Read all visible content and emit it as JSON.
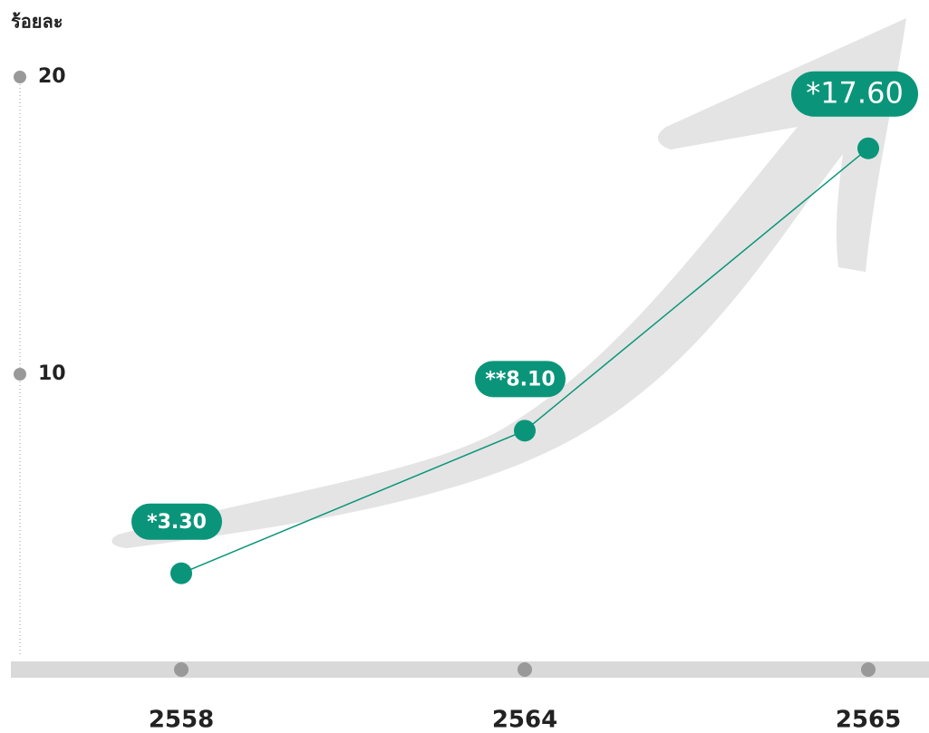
{
  "chart_data": {
    "type": "line",
    "y_label": "ร้อยละ",
    "categories": [
      "2558",
      "2564",
      "2565"
    ],
    "values": [
      3.3,
      8.1,
      17.6
    ],
    "value_labels": [
      "*3.30",
      "**8.10",
      "*17.60"
    ],
    "color": "#0a957a",
    "ylim": [
      0,
      20
    ],
    "yticks": [
      10,
      20
    ]
  }
}
